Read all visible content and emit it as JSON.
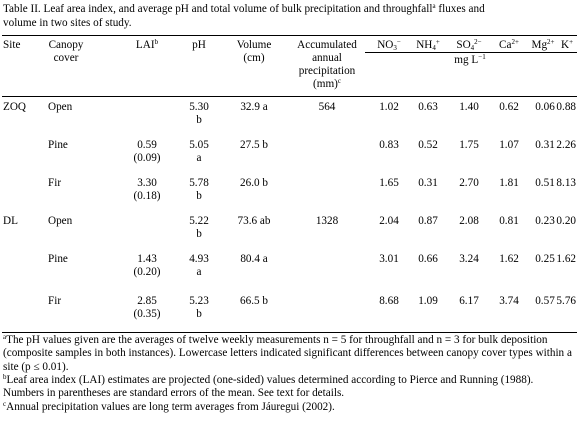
{
  "caption": {
    "line1_pre": "Table II. Leaf area index, and average pH and total volume of bulk precipitation and throughfall",
    "line1_sup": "a",
    "line1_post": " fluxes and",
    "line2": "volume in two sites of study."
  },
  "headers": {
    "site": "Site",
    "canopy": [
      "Canopy",
      "cover"
    ],
    "lai": "LAI",
    "lai_sup": "b",
    "ph": "pH",
    "volume": [
      "Volume",
      "(cm)"
    ],
    "accum": [
      "Accumulated",
      "annual",
      "precipitation"
    ],
    "accum_unit": "(mm)",
    "accum_sup": "c",
    "no3": {
      "base": "NO",
      "sub": "3",
      "sup": "−"
    },
    "nh4": {
      "base": "NH",
      "sub": "4",
      "sup": "+"
    },
    "so4": {
      "base": "SO",
      "sub": "4",
      "sup": "2−"
    },
    "ca": {
      "base": "Ca",
      "sup": "2+"
    },
    "mg": {
      "base": "Mg",
      "sup": "2+"
    },
    "k": {
      "base": "K",
      "sup": "+"
    },
    "unit": "mg L",
    "unit_sup": "−1"
  },
  "rows": [
    {
      "site": "ZOQ",
      "cover": "Open",
      "lai": "",
      "lai_se": "",
      "ph": "5.30",
      "ph_l": "b",
      "vol": "32.9 a",
      "prec": "564",
      "no3": "1.02",
      "nh4": "0.63",
      "so4": "1.40",
      "ca": "0.62",
      "mg": "0.06",
      "k": "0.88"
    },
    {
      "site": "",
      "cover": "Pine",
      "lai": "0.59",
      "lai_se": "(0.09)",
      "ph": "5.05",
      "ph_l": "a",
      "vol": "27.5 b",
      "prec": "",
      "no3": "0.83",
      "nh4": "0.52",
      "so4": "1.75",
      "ca": "1.07",
      "mg": "0.31",
      "k": "2.26"
    },
    {
      "site": "",
      "cover": "Fir",
      "lai": "3.30",
      "lai_se": "(0.18)",
      "ph": "5.78",
      "ph_l": "b",
      "vol": "26.0 b",
      "prec": "",
      "no3": "1.65",
      "nh4": "0.31",
      "so4": "2.70",
      "ca": "1.81",
      "mg": "0.51",
      "k": "8.13"
    },
    {
      "site": "DL",
      "cover": "Open",
      "lai": "",
      "lai_se": "",
      "ph": "5.22",
      "ph_l": "b",
      "vol": "73.6 ab",
      "prec": "1328",
      "no3": "2.04",
      "nh4": "0.87",
      "so4": "2.08",
      "ca": "0.81",
      "mg": "0.23",
      "k": "0.20"
    },
    {
      "site": "",
      "cover": "Pine",
      "lai": "1.43",
      "lai_se": "(0.20)",
      "ph": "4.93",
      "ph_l": "a",
      "vol": "80.4 a",
      "prec": "",
      "no3": "3.01",
      "nh4": "0.66",
      "so4": "3.24",
      "ca": "1.62",
      "mg": "0.25",
      "k": "1.62"
    },
    {
      "site": "",
      "cover": "Fir",
      "lai": "2.85",
      "lai_se": "(0.35)",
      "ph": "5.23",
      "ph_l": "b",
      "vol": "66.5 b",
      "prec": "",
      "no3": "8.68",
      "nh4": "1.09",
      "so4": "6.17",
      "ca": "3.74",
      "mg": "0.57",
      "k": "5.76"
    }
  ],
  "footnotes": [
    {
      "mark": "a",
      "text": "The pH values given are the averages of twelve weekly measurements n = 5 for throughfall and n = 3 for bulk deposition (composite samples in both instances). Lowercase letters indicated significant differences between canopy cover types within a site (p ≤ 0.01)."
    },
    {
      "mark": "b",
      "text": "Leaf area index (LAI) estimates are projected (one-sided) values determined according to Pierce and Running (1988). Numbers in parentheses are standard errors of the mean. See text for details."
    },
    {
      "mark": "c",
      "text": "Annual precipitation values are long term averages from Jáuregui (2002)."
    }
  ]
}
